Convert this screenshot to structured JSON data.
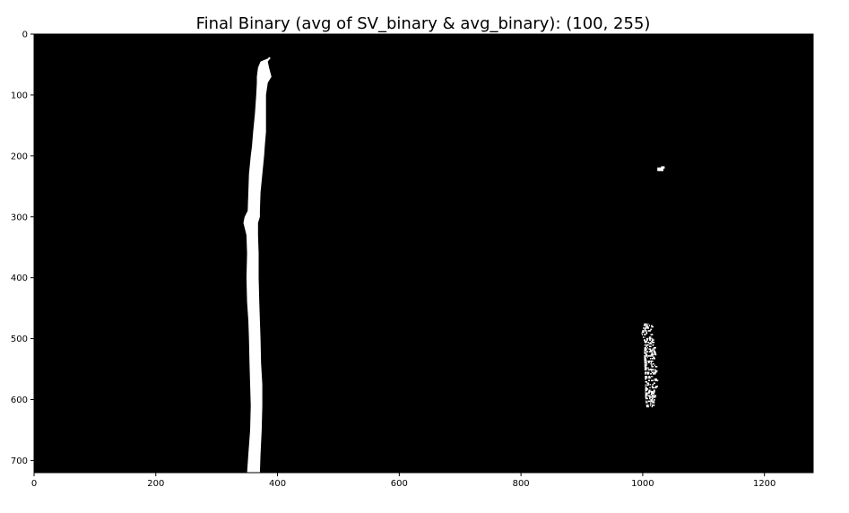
{
  "chart_data": {
    "type": "heatmap",
    "title": "Final Binary (avg of SV_binary & avg_binary): (100, 255)",
    "xlabel": "",
    "ylabel": "",
    "xlim": [
      0,
      1280
    ],
    "ylim": [
      720,
      0
    ],
    "x_ticks": [
      0,
      200,
      400,
      600,
      800,
      1000,
      1200
    ],
    "y_ticks": [
      0,
      100,
      200,
      300,
      400,
      500,
      600,
      700
    ],
    "grid": false,
    "legend": "none",
    "colors": {
      "background": "#000000",
      "foreground": "#ffffff"
    },
    "left_lane_profile": [
      {
        "y": 40,
        "x0": 384,
        "x1": 388
      },
      {
        "y": 45,
        "x0": 372,
        "x1": 384
      },
      {
        "y": 55,
        "x0": 368,
        "x1": 386
      },
      {
        "y": 70,
        "x0": 366,
        "x1": 390
      },
      {
        "y": 80,
        "x0": 366,
        "x1": 384
      },
      {
        "y": 100,
        "x0": 365,
        "x1": 381
      },
      {
        "y": 130,
        "x0": 363,
        "x1": 381
      },
      {
        "y": 160,
        "x0": 360,
        "x1": 381
      },
      {
        "y": 185,
        "x0": 358,
        "x1": 379
      },
      {
        "y": 200,
        "x0": 356,
        "x1": 378
      },
      {
        "y": 230,
        "x0": 353,
        "x1": 375
      },
      {
        "y": 260,
        "x0": 352,
        "x1": 372
      },
      {
        "y": 290,
        "x0": 351,
        "x1": 371
      },
      {
        "y": 300,
        "x0": 346,
        "x1": 371
      },
      {
        "y": 310,
        "x0": 344,
        "x1": 368
      },
      {
        "y": 330,
        "x0": 349,
        "x1": 368
      },
      {
        "y": 360,
        "x0": 350,
        "x1": 369
      },
      {
        "y": 400,
        "x0": 349,
        "x1": 369
      },
      {
        "y": 440,
        "x0": 350,
        "x1": 370
      },
      {
        "y": 470,
        "x0": 352,
        "x1": 371
      },
      {
        "y": 500,
        "x0": 353,
        "x1": 372
      },
      {
        "y": 540,
        "x0": 354,
        "x1": 373
      },
      {
        "y": 575,
        "x0": 355,
        "x1": 375
      },
      {
        "y": 610,
        "x0": 356,
        "x1": 375
      },
      {
        "y": 650,
        "x0": 355,
        "x1": 374
      },
      {
        "y": 690,
        "x0": 352,
        "x1": 372
      },
      {
        "y": 720,
        "x0": 350,
        "x1": 371
      }
    ],
    "right_lane_region": {
      "x0": 996,
      "x1": 1022,
      "y0": 475,
      "y1": 612
    },
    "right_lane_profile": [
      {
        "y": 475,
        "x0": 1002,
        "x1": 1016
      },
      {
        "y": 490,
        "x0": 998,
        "x1": 1014
      },
      {
        "y": 505,
        "x0": 1003,
        "x1": 1018
      },
      {
        "y": 525,
        "x0": 1002,
        "x1": 1020
      },
      {
        "y": 550,
        "x0": 1003,
        "x1": 1021
      },
      {
        "y": 575,
        "x0": 1004,
        "x1": 1021
      },
      {
        "y": 595,
        "x0": 1004,
        "x1": 1020
      },
      {
        "y": 612,
        "x0": 1006,
        "x1": 1018
      }
    ],
    "specks": [
      {
        "x": 1024,
        "y": 219,
        "w": 10,
        "h": 6
      },
      {
        "x": 1030,
        "y": 217,
        "w": 6,
        "h": 4
      },
      {
        "x": 385,
        "y": 38,
        "w": 3,
        "h": 3
      }
    ]
  }
}
